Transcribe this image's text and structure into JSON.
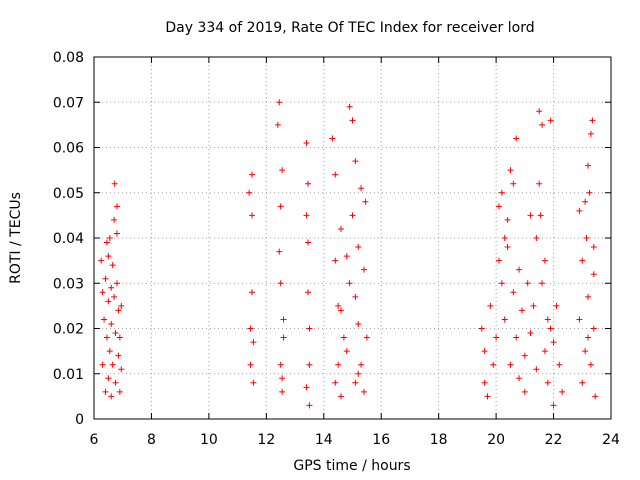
{
  "chart_data": {
    "type": "scatter",
    "title": "Day 334 of 2019, Rate Of TEC Index for receiver lord",
    "xlabel": "GPS time / hours",
    "ylabel": "ROTI / TECUs",
    "xlim": [
      6,
      24
    ],
    "ylim": [
      0,
      0.08
    ],
    "x_ticks": [
      "6",
      "8",
      "10",
      "12",
      "14",
      "16",
      "18",
      "20",
      "22",
      "24"
    ],
    "y_ticks": [
      "0",
      "0.01",
      "0.02",
      "0.03",
      "0.04",
      "0.05",
      "0.06",
      "0.07",
      "0.08"
    ],
    "grid": true,
    "marker": "+",
    "color": "#ff0000",
    "series": [
      {
        "points": [
          [
            6.25,
            0.035
          ],
          [
            6.3,
            0.028
          ],
          [
            6.3,
            0.012
          ],
          [
            6.35,
            0.022
          ],
          [
            6.4,
            0.006
          ],
          [
            6.4,
            0.031
          ],
          [
            6.45,
            0.018
          ],
          [
            6.45,
            0.039
          ],
          [
            6.5,
            0.009
          ],
          [
            6.5,
            0.026
          ],
          [
            6.55,
            0.015
          ],
          [
            6.55,
            0.04
          ],
          [
            6.6,
            0.005
          ],
          [
            6.6,
            0.021
          ],
          [
            6.65,
            0.034
          ],
          [
            6.65,
            0.012
          ],
          [
            6.7,
            0.044
          ],
          [
            6.7,
            0.027
          ],
          [
            6.72,
            0.052
          ],
          [
            6.75,
            0.008
          ],
          [
            6.75,
            0.019
          ],
          [
            6.8,
            0.047
          ],
          [
            6.8,
            0.03
          ],
          [
            6.85,
            0.014
          ],
          [
            6.85,
            0.024
          ],
          [
            6.9,
            0.006
          ],
          [
            6.9,
            0.018
          ],
          [
            6.95,
            0.025
          ],
          [
            6.95,
            0.011
          ],
          [
            6.5,
            0.036
          ],
          [
            6.6,
            0.029
          ],
          [
            6.8,
            0.041
          ],
          [
            11.4,
            0.05
          ],
          [
            11.45,
            0.02
          ],
          [
            11.45,
            0.012
          ],
          [
            11.5,
            0.054
          ],
          [
            11.5,
            0.028
          ],
          [
            11.55,
            0.008
          ],
          [
            11.55,
            0.017
          ],
          [
            11.5,
            0.045
          ],
          [
            12.4,
            0.065
          ],
          [
            12.45,
            0.07
          ],
          [
            12.45,
            0.037
          ],
          [
            12.5,
            0.012
          ],
          [
            12.5,
            0.03
          ],
          [
            12.55,
            0.055
          ],
          [
            12.55,
            0.006
          ],
          [
            12.6,
            0.022
          ],
          [
            12.6,
            0.018
          ],
          [
            12.5,
            0.047
          ],
          [
            12.55,
            0.009
          ],
          [
            13.4,
            0.061
          ],
          [
            13.45,
            0.052
          ],
          [
            13.45,
            0.039
          ],
          [
            13.5,
            0.003
          ],
          [
            13.5,
            0.02
          ],
          [
            13.4,
            0.045
          ],
          [
            13.5,
            0.012
          ],
          [
            13.45,
            0.028
          ],
          [
            13.4,
            0.007
          ],
          [
            14.3,
            0.062
          ],
          [
            14.4,
            0.054
          ],
          [
            14.4,
            0.035
          ],
          [
            14.5,
            0.012
          ],
          [
            14.5,
            0.025
          ],
          [
            14.6,
            0.005
          ],
          [
            14.6,
            0.042
          ],
          [
            14.7,
            0.018
          ],
          [
            14.8,
            0.015
          ],
          [
            14.9,
            0.069
          ],
          [
            14.9,
            0.03
          ],
          [
            15.0,
            0.066
          ],
          [
            15.0,
            0.045
          ],
          [
            15.1,
            0.057
          ],
          [
            15.1,
            0.008
          ],
          [
            15.2,
            0.038
          ],
          [
            15.2,
            0.021
          ],
          [
            15.3,
            0.051
          ],
          [
            15.3,
            0.012
          ],
          [
            15.4,
            0.033
          ],
          [
            15.4,
            0.006
          ],
          [
            15.45,
            0.048
          ],
          [
            15.5,
            0.018
          ],
          [
            15.1,
            0.027
          ],
          [
            14.6,
            0.024
          ],
          [
            14.8,
            0.036
          ],
          [
            15.2,
            0.01
          ],
          [
            14.4,
            0.008
          ],
          [
            19.5,
            0.02
          ],
          [
            19.6,
            0.008
          ],
          [
            19.6,
            0.015
          ],
          [
            19.7,
            0.005
          ],
          [
            19.8,
            0.025
          ],
          [
            19.9,
            0.012
          ],
          [
            20.0,
            0.018
          ],
          [
            20.1,
            0.035
          ],
          [
            20.1,
            0.047
          ],
          [
            20.2,
            0.05
          ],
          [
            20.2,
            0.03
          ],
          [
            20.3,
            0.04
          ],
          [
            20.3,
            0.022
          ],
          [
            20.4,
            0.038
          ],
          [
            20.4,
            0.044
          ],
          [
            20.5,
            0.055
          ],
          [
            20.5,
            0.012
          ],
          [
            20.6,
            0.052
          ],
          [
            20.6,
            0.028
          ],
          [
            20.7,
            0.062
          ],
          [
            20.7,
            0.018
          ],
          [
            20.8,
            0.009
          ],
          [
            20.9,
            0.024
          ],
          [
            21.0,
            0.014
          ],
          [
            21.0,
            0.006
          ],
          [
            21.1,
            0.03
          ],
          [
            21.2,
            0.019
          ],
          [
            21.3,
            0.025
          ],
          [
            21.4,
            0.04
          ],
          [
            21.4,
            0.011
          ],
          [
            21.5,
            0.052
          ],
          [
            21.5,
            0.068
          ],
          [
            21.55,
            0.045
          ],
          [
            21.6,
            0.065
          ],
          [
            21.6,
            0.03
          ],
          [
            21.7,
            0.035
          ],
          [
            21.7,
            0.015
          ],
          [
            21.8,
            0.022
          ],
          [
            21.8,
            0.008
          ],
          [
            21.9,
            0.066
          ],
          [
            22.0,
            0.003
          ],
          [
            22.0,
            0.017
          ],
          [
            22.1,
            0.025
          ],
          [
            22.2,
            0.012
          ],
          [
            22.3,
            0.006
          ],
          [
            21.2,
            0.045
          ],
          [
            20.8,
            0.033
          ],
          [
            21.9,
            0.02
          ],
          [
            22.9,
            0.046
          ],
          [
            22.9,
            0.022
          ],
          [
            23.0,
            0.035
          ],
          [
            23.0,
            0.008
          ],
          [
            23.1,
            0.015
          ],
          [
            23.1,
            0.048
          ],
          [
            23.15,
            0.04
          ],
          [
            23.2,
            0.056
          ],
          [
            23.2,
            0.027
          ],
          [
            23.25,
            0.05
          ],
          [
            23.3,
            0.063
          ],
          [
            23.3,
            0.012
          ],
          [
            23.35,
            0.066
          ],
          [
            23.4,
            0.038
          ],
          [
            23.4,
            0.02
          ],
          [
            23.45,
            0.005
          ],
          [
            23.4,
            0.032
          ],
          [
            23.2,
            0.018
          ]
        ]
      }
    ]
  }
}
